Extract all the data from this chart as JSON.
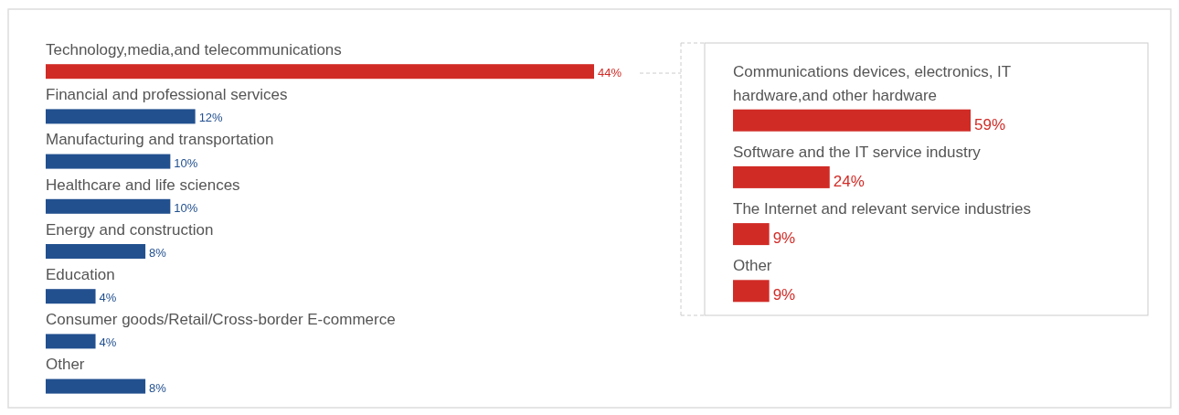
{
  "chart_data": [
    {
      "type": "bar",
      "orientation": "horizontal",
      "categories": [
        "Technology,media,and telecommunications",
        "Financial and professional services",
        "Manufacturing and transportation",
        "Healthcare and life sciences",
        "Energy and construction",
        "Education",
        "Consumer goods/Retail/Cross-border E-commerce",
        "Other"
      ],
      "values": [
        44,
        12,
        10,
        10,
        8,
        4,
        4,
        8
      ],
      "colors": [
        "#d12b26",
        "#22508f",
        "#22508f",
        "#22508f",
        "#22508f",
        "#22508f",
        "#22508f",
        "#22508f"
      ],
      "value_labels": [
        "44%",
        "12%",
        "10%",
        "10%",
        "8%",
        "4%",
        "4%",
        "8%"
      ]
    },
    {
      "type": "bar",
      "orientation": "horizontal",
      "categories": [
        "Communications devices, electronics, IT hardware,and other hardware",
        "Software and the IT service industry",
        "The Internet and relevant service industries",
        "Other"
      ],
      "values": [
        59,
        24,
        9,
        9
      ],
      "color": "#d12b26",
      "value_labels": [
        "59%",
        "24%",
        "9%",
        "9%"
      ]
    }
  ]
}
